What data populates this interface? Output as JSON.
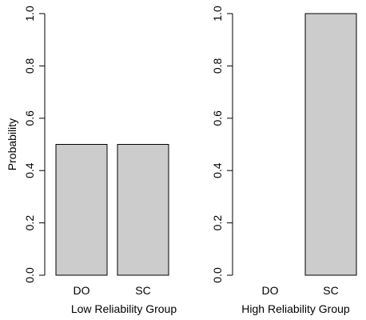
{
  "colors": {
    "bar_fill": "#cccccc",
    "bar_stroke": "#000000",
    "axis": "#000000",
    "background": "#ffffff"
  },
  "chart_data": [
    {
      "type": "bar",
      "title": "",
      "xlabel": "Low Reliability Group",
      "ylabel": "Probability",
      "categories": [
        "DO",
        "SC"
      ],
      "values": [
        0.5,
        0.5
      ],
      "ylim": [
        0,
        1
      ],
      "yticks": [
        "0.0",
        "0.2",
        "0.4",
        "0.6",
        "0.8",
        "1.0"
      ],
      "grid": false,
      "legend": null
    },
    {
      "type": "bar",
      "title": "",
      "xlabel": "High Reliability Group",
      "ylabel": "",
      "categories": [
        "DO",
        "SC"
      ],
      "values": [
        0.0,
        1.0
      ],
      "ylim": [
        0,
        1
      ],
      "yticks": [
        "0.0",
        "0.2",
        "0.4",
        "0.6",
        "0.8",
        "1.0"
      ],
      "grid": false,
      "legend": null
    }
  ]
}
